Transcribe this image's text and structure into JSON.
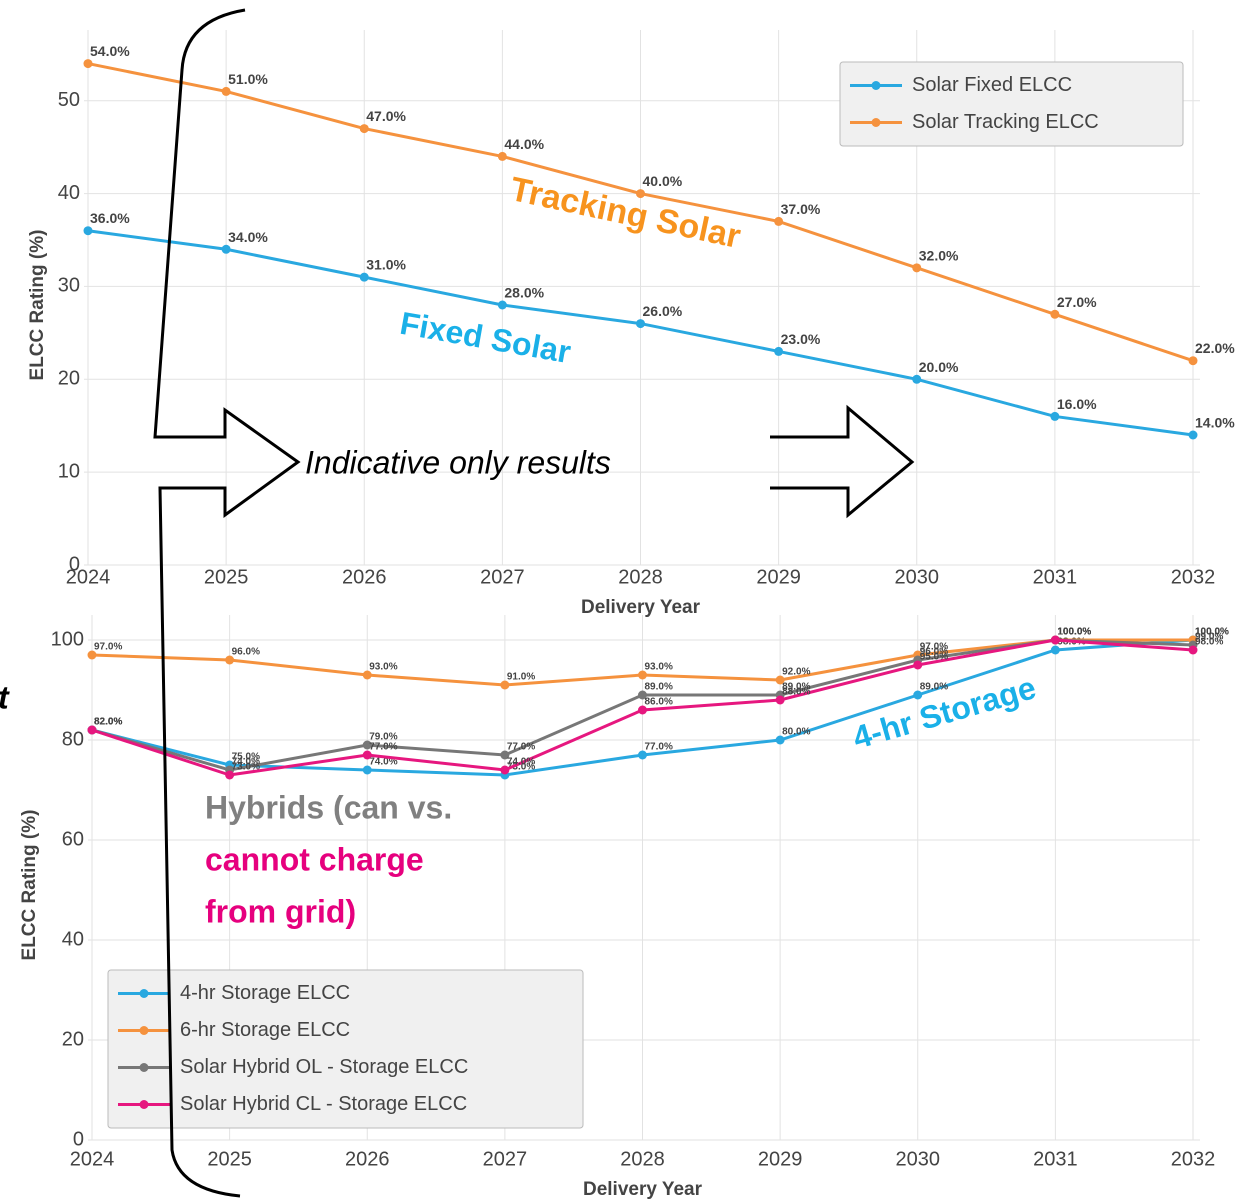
{
  "chart_data": [
    {
      "type": "line",
      "x_label": "Delivery Year",
      "y_label": "ELCC Rating (%)",
      "x": [
        2024,
        2025,
        2026,
        2027,
        2028,
        2029,
        2030,
        2031,
        2032
      ],
      "xlim": [
        2024,
        2032
      ],
      "xticks": [
        2024,
        2025,
        2026,
        2027,
        2028,
        2029,
        2030,
        2031,
        2032
      ],
      "ylim": [
        0,
        56
      ],
      "yticks": [
        0,
        10,
        20,
        30,
        40,
        50
      ],
      "grid": true,
      "legend": "upper right",
      "series": [
        {
          "name": "Solar Fixed ELCC",
          "color": "#29a8e0",
          "values": [
            36,
            34,
            31,
            28,
            26,
            23,
            20,
            16,
            14
          ],
          "value_labels": [
            "36.0%",
            "34.0%",
            "31.0%",
            "28.0%",
            "26.0%",
            "23.0%",
            "20.0%",
            "16.0%",
            "14.0%"
          ]
        },
        {
          "name": "Solar Tracking ELCC",
          "color": "#f5923e",
          "values": [
            54,
            51,
            47,
            44,
            40,
            37,
            32,
            27,
            22
          ],
          "value_labels": [
            "54.0%",
            "51.0%",
            "47.0%",
            "44.0%",
            "40.0%",
            "37.0%",
            "32.0%",
            "27.0%",
            "22.0%"
          ]
        }
      ],
      "annotations": [
        {
          "text": "Tracking Solar",
          "color": "#f7931e"
        },
        {
          "text": "Fixed Solar",
          "color": "#1ab0e8"
        },
        {
          "text": "Indicative only results",
          "color": "#000000"
        }
      ]
    },
    {
      "type": "line",
      "x_label": "Delivery Year",
      "y_label": "ELCC Rating (%)",
      "x": [
        2024,
        2025,
        2026,
        2027,
        2028,
        2029,
        2030,
        2031,
        2032
      ],
      "xlim": [
        2024,
        2032
      ],
      "xticks": [
        2024,
        2025,
        2026,
        2027,
        2028,
        2029,
        2030,
        2031,
        2032
      ],
      "ylim": [
        0,
        102
      ],
      "yticks": [
        0,
        20,
        40,
        60,
        80,
        100
      ],
      "grid": true,
      "legend": "lower left",
      "series": [
        {
          "name": "4-hr Storage ELCC",
          "color": "#29a8e0",
          "values": [
            82,
            75,
            74,
            73,
            77,
            80,
            89,
            98,
            100
          ],
          "value_labels": [
            "82.0%",
            "75.0%",
            "74.0%",
            "73.0%",
            "77.0%",
            "80.0%",
            "89.0%",
            "98.0%",
            "100.0%"
          ]
        },
        {
          "name": "6-hr Storage ELCC",
          "color": "#f5923e",
          "values": [
            97,
            96,
            93,
            91,
            93,
            92,
            97,
            100,
            100
          ],
          "value_labels": [
            "97.0%",
            "96.0%",
            "93.0%",
            "91.0%",
            "93.0%",
            "92.0%",
            "97.0%",
            "100.0%",
            "100.0%"
          ]
        },
        {
          "name": "Solar Hybrid OL - Storage ELCC",
          "color": "#777777",
          "values": [
            82,
            74,
            79,
            77,
            89,
            89,
            96,
            100,
            99
          ],
          "value_labels": [
            "82.0%",
            "74.0%",
            "79.0%",
            "77.0%",
            "89.0%",
            "89.0%",
            "96.0%",
            "100.0%",
            "99.0%"
          ]
        },
        {
          "name": "Solar Hybrid CL - Storage ELCC",
          "color": "#e6177f",
          "values": [
            82,
            73,
            77,
            74,
            86,
            88,
            95,
            100,
            98
          ],
          "value_labels": [
            "82.0%",
            "73.0%",
            "77.0%",
            "74.0%",
            "86.0%",
            "88.0%",
            "95.0%",
            "100.0%",
            "98.0%"
          ]
        }
      ],
      "annotations": [
        {
          "text": "4-hr Storage",
          "color": "#1ab0e8"
        },
        {
          "text": "Hybrids (can vs.",
          "color": "#808080"
        },
        {
          "text": "cannot charge",
          "color": "#e6007e"
        },
        {
          "text": "from grid)",
          "color": "#e6007e"
        },
        {
          "text": "t",
          "color": "#000000"
        }
      ]
    }
  ]
}
